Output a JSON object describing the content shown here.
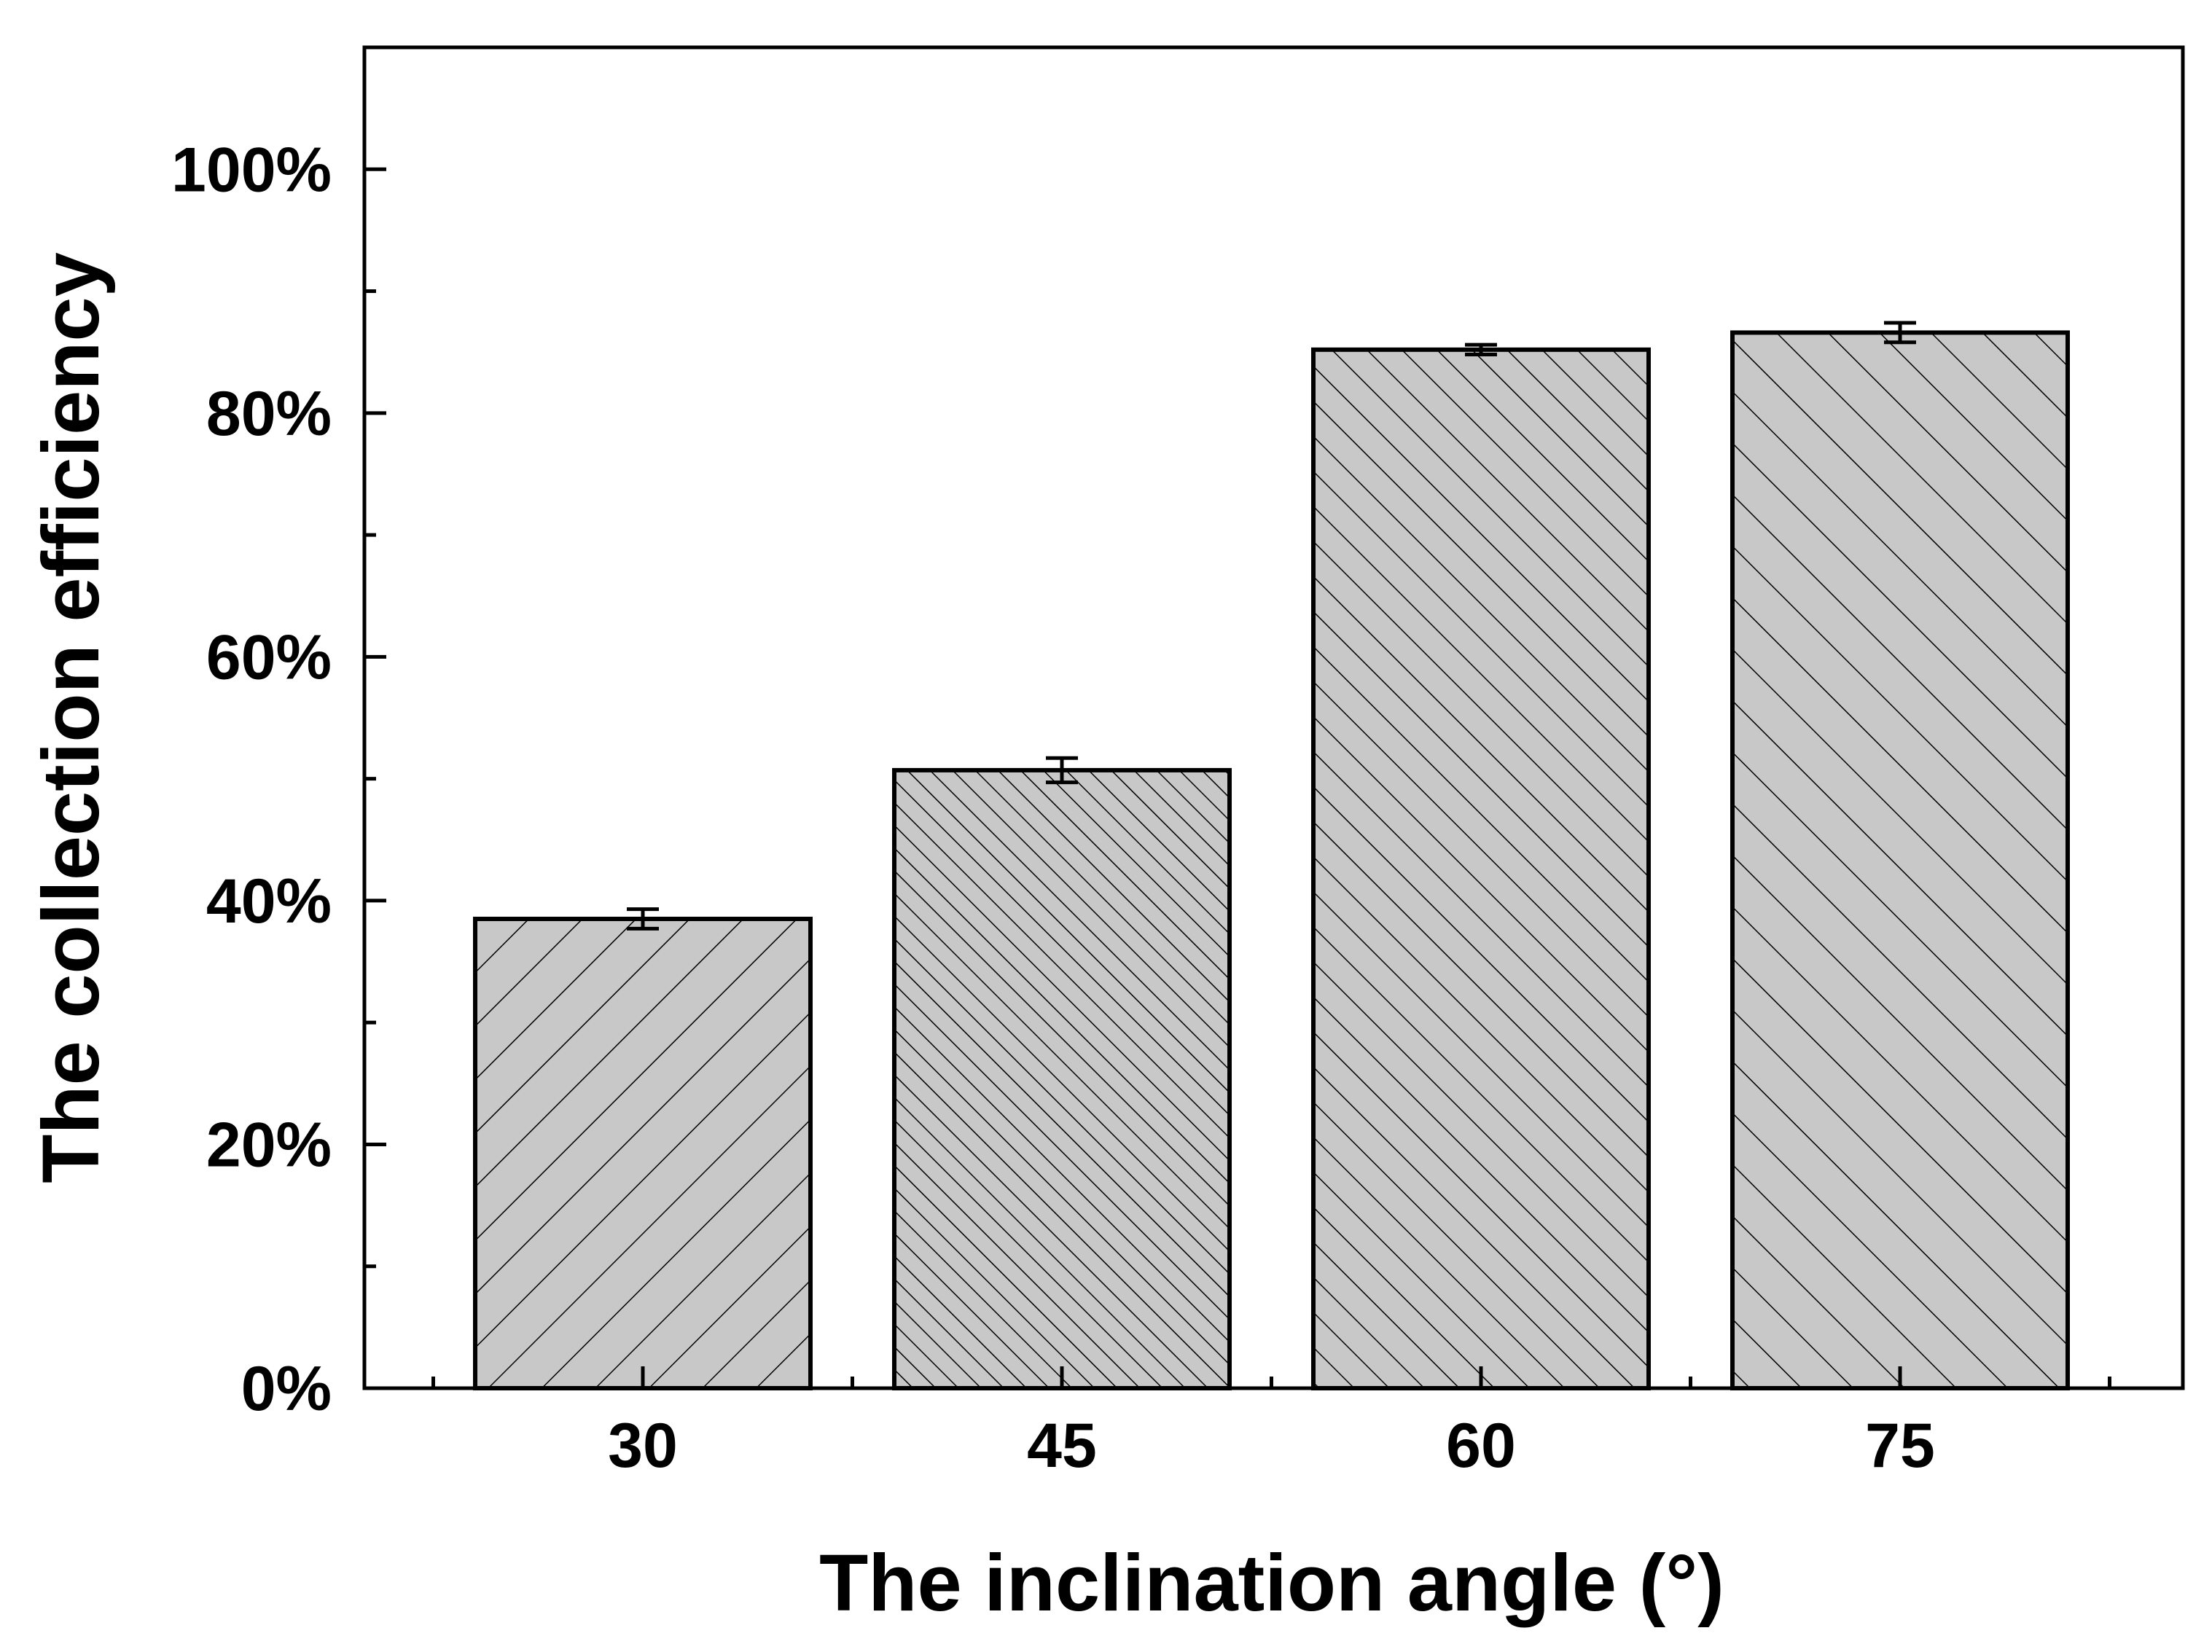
{
  "chart_data": {
    "type": "bar",
    "title": "",
    "xlabel": "The inclination angle (°)",
    "ylabel": "The collection efficiency",
    "categories": [
      "30",
      "45",
      "60",
      "75"
    ],
    "values": [
      38.5,
      50.7,
      85.2,
      86.6
    ],
    "errors": [
      0.8,
      1.0,
      0.4,
      0.8
    ],
    "ylim": [
      0,
      110
    ],
    "yticks": [
      0,
      20,
      40,
      60,
      80,
      100
    ],
    "ytick_labels": [
      "0%",
      "20%",
      "40%",
      "60%",
      "80%",
      "100%"
    ],
    "yminor_ticks": [
      10,
      30,
      50,
      70,
      90
    ],
    "grid": false,
    "bar_color": "#c8c8c8",
    "hatch_color": "#000000",
    "hatch_styles": [
      "forward-wide",
      "back-dense",
      "back-medium",
      "back-wide"
    ]
  }
}
